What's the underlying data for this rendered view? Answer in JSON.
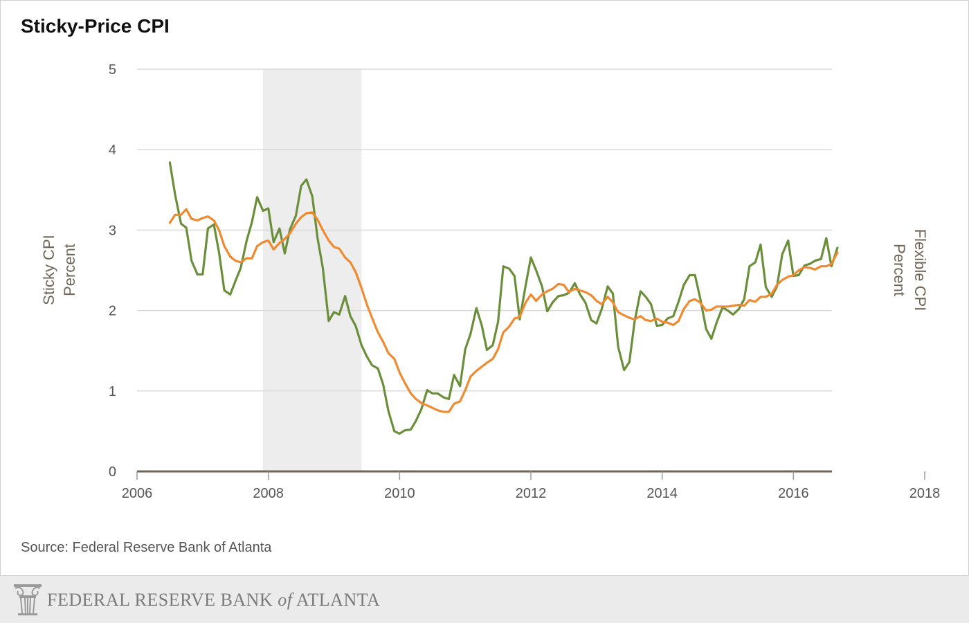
{
  "header": {
    "title": "Sticky-Price CPI"
  },
  "source": {
    "text": "Source: Federal Reserve Bank of Atlanta"
  },
  "footer": {
    "part1": "FEDERAL RESERVE BANK ",
    "of": "of",
    "part2": " ATLANTA",
    "logo_icon": "column-capital-logo-icon"
  },
  "colors": {
    "sticky": "#6b8e3a",
    "flexible": "#f08a30",
    "recession": "#ededed",
    "grid": "#d9d9d9",
    "baseline": "#6e6457",
    "axis_label": "#6e6457",
    "tick": "#555555"
  },
  "chart_data": {
    "type": "line",
    "title": "Sticky-Price CPI",
    "ylabel_left": [
      "Sticky CPI",
      "Percent"
    ],
    "ylabel_right": [
      "Flexible CPI",
      "Percent"
    ],
    "xlim": [
      2006,
      2018
    ],
    "ylim": [
      0,
      5
    ],
    "x_ticks": [
      2006,
      2008,
      2010,
      2012,
      2014,
      2016,
      2018
    ],
    "x_tick_labels": [
      "2006",
      "2008",
      "2010",
      "2012",
      "2014",
      "2016",
      "2018"
    ],
    "y_ticks": [
      0,
      1,
      2,
      3,
      4,
      5
    ],
    "y_tick_labels": [
      "0",
      "1",
      "2",
      "3",
      "4",
      "5"
    ],
    "grid": true,
    "shaded_regions": [
      [
        2007.92,
        2009.42
      ]
    ],
    "series": [
      {
        "color_key": "sticky",
        "points": [
          [
            2006.5,
            3.84
          ],
          [
            2006.58,
            3.44
          ],
          [
            2006.67,
            3.08
          ],
          [
            2006.75,
            3.03
          ],
          [
            2006.83,
            2.62
          ],
          [
            2006.92,
            2.45
          ],
          [
            2007.0,
            2.45
          ],
          [
            2007.08,
            3.02
          ],
          [
            2007.17,
            3.07
          ],
          [
            2007.25,
            2.72
          ],
          [
            2007.33,
            2.25
          ],
          [
            2007.42,
            2.2
          ],
          [
            2007.5,
            2.37
          ],
          [
            2007.58,
            2.53
          ],
          [
            2007.67,
            2.87
          ],
          [
            2007.75,
            3.1
          ],
          [
            2007.83,
            3.41
          ],
          [
            2007.92,
            3.24
          ],
          [
            2008.0,
            3.27
          ],
          [
            2008.08,
            2.85
          ],
          [
            2008.17,
            3.02
          ],
          [
            2008.25,
            2.71
          ],
          [
            2008.33,
            3.01
          ],
          [
            2008.42,
            3.18
          ],
          [
            2008.5,
            3.55
          ],
          [
            2008.58,
            3.63
          ],
          [
            2008.67,
            3.42
          ],
          [
            2008.75,
            2.9
          ],
          [
            2008.83,
            2.53
          ],
          [
            2008.92,
            1.87
          ],
          [
            2009.0,
            1.98
          ],
          [
            2009.08,
            1.95
          ],
          [
            2009.17,
            2.18
          ],
          [
            2009.25,
            1.93
          ],
          [
            2009.33,
            1.81
          ],
          [
            2009.42,
            1.57
          ],
          [
            2009.5,
            1.43
          ],
          [
            2009.58,
            1.32
          ],
          [
            2009.67,
            1.28
          ],
          [
            2009.75,
            1.08
          ],
          [
            2009.83,
            0.75
          ],
          [
            2009.92,
            0.5
          ],
          [
            2010.0,
            0.47
          ],
          [
            2010.08,
            0.51
          ],
          [
            2010.17,
            0.52
          ],
          [
            2010.25,
            0.63
          ],
          [
            2010.33,
            0.77
          ],
          [
            2010.42,
            1.01
          ],
          [
            2010.5,
            0.97
          ],
          [
            2010.58,
            0.97
          ],
          [
            2010.67,
            0.92
          ],
          [
            2010.75,
            0.9
          ],
          [
            2010.83,
            1.2
          ],
          [
            2010.92,
            1.06
          ],
          [
            2011.0,
            1.52
          ],
          [
            2011.08,
            1.71
          ],
          [
            2011.17,
            2.03
          ],
          [
            2011.25,
            1.82
          ],
          [
            2011.33,
            1.51
          ],
          [
            2011.42,
            1.57
          ],
          [
            2011.5,
            1.86
          ],
          [
            2011.58,
            2.55
          ],
          [
            2011.67,
            2.52
          ],
          [
            2011.75,
            2.43
          ],
          [
            2011.83,
            1.89
          ],
          [
            2011.92,
            2.31
          ],
          [
            2012.0,
            2.66
          ],
          [
            2012.08,
            2.5
          ],
          [
            2012.17,
            2.3
          ],
          [
            2012.25,
            1.99
          ],
          [
            2012.33,
            2.1
          ],
          [
            2012.42,
            2.18
          ],
          [
            2012.5,
            2.19
          ],
          [
            2012.58,
            2.22
          ],
          [
            2012.67,
            2.34
          ],
          [
            2012.75,
            2.2
          ],
          [
            2012.83,
            2.1
          ],
          [
            2012.92,
            1.88
          ],
          [
            2013.0,
            1.84
          ],
          [
            2013.08,
            2.02
          ],
          [
            2013.17,
            2.3
          ],
          [
            2013.25,
            2.21
          ],
          [
            2013.33,
            1.55
          ],
          [
            2013.42,
            1.26
          ],
          [
            2013.5,
            1.36
          ],
          [
            2013.58,
            1.86
          ],
          [
            2013.67,
            2.24
          ],
          [
            2013.75,
            2.17
          ],
          [
            2013.83,
            2.08
          ],
          [
            2013.92,
            1.81
          ],
          [
            2014.0,
            1.82
          ],
          [
            2014.08,
            1.9
          ],
          [
            2014.17,
            1.93
          ],
          [
            2014.25,
            2.11
          ],
          [
            2014.33,
            2.32
          ],
          [
            2014.42,
            2.44
          ],
          [
            2014.5,
            2.44
          ],
          [
            2014.58,
            2.15
          ],
          [
            2014.67,
            1.77
          ],
          [
            2014.75,
            1.65
          ],
          [
            2014.83,
            1.85
          ],
          [
            2014.92,
            2.04
          ],
          [
            2015.0,
            2.0
          ],
          [
            2015.08,
            1.95
          ],
          [
            2015.17,
            2.02
          ],
          [
            2015.25,
            2.14
          ],
          [
            2015.33,
            2.55
          ],
          [
            2015.42,
            2.6
          ],
          [
            2015.5,
            2.82
          ],
          [
            2015.58,
            2.29
          ],
          [
            2015.67,
            2.17
          ],
          [
            2015.75,
            2.3
          ],
          [
            2015.83,
            2.7
          ],
          [
            2015.92,
            2.87
          ],
          [
            2016.0,
            2.43
          ],
          [
            2016.08,
            2.44
          ],
          [
            2016.17,
            2.56
          ],
          [
            2016.25,
            2.58
          ],
          [
            2016.33,
            2.62
          ],
          [
            2016.42,
            2.64
          ],
          [
            2016.5,
            2.9
          ],
          [
            2016.58,
            2.55
          ],
          [
            2016.67,
            2.78
          ]
        ]
      },
      {
        "color_key": "flexible",
        "points": [
          [
            2006.5,
            3.09
          ],
          [
            2006.58,
            3.19
          ],
          [
            2006.67,
            3.19
          ],
          [
            2006.75,
            3.26
          ],
          [
            2006.83,
            3.14
          ],
          [
            2006.92,
            3.12
          ],
          [
            2007.0,
            3.15
          ],
          [
            2007.08,
            3.17
          ],
          [
            2007.17,
            3.12
          ],
          [
            2007.25,
            3.0
          ],
          [
            2007.33,
            2.8
          ],
          [
            2007.42,
            2.67
          ],
          [
            2007.5,
            2.62
          ],
          [
            2007.58,
            2.6
          ],
          [
            2007.67,
            2.65
          ],
          [
            2007.75,
            2.65
          ],
          [
            2007.83,
            2.8
          ],
          [
            2007.92,
            2.85
          ],
          [
            2008.0,
            2.87
          ],
          [
            2008.08,
            2.76
          ],
          [
            2008.17,
            2.84
          ],
          [
            2008.25,
            2.89
          ],
          [
            2008.33,
            2.96
          ],
          [
            2008.42,
            3.08
          ],
          [
            2008.5,
            3.16
          ],
          [
            2008.58,
            3.21
          ],
          [
            2008.67,
            3.22
          ],
          [
            2008.75,
            3.13
          ],
          [
            2008.83,
            3.0
          ],
          [
            2008.92,
            2.87
          ],
          [
            2009.0,
            2.79
          ],
          [
            2009.08,
            2.77
          ],
          [
            2009.17,
            2.66
          ],
          [
            2009.25,
            2.6
          ],
          [
            2009.33,
            2.48
          ],
          [
            2009.42,
            2.28
          ],
          [
            2009.5,
            2.08
          ],
          [
            2009.58,
            1.91
          ],
          [
            2009.67,
            1.73
          ],
          [
            2009.75,
            1.61
          ],
          [
            2009.83,
            1.47
          ],
          [
            2009.92,
            1.4
          ],
          [
            2010.0,
            1.23
          ],
          [
            2010.08,
            1.1
          ],
          [
            2010.17,
            0.97
          ],
          [
            2010.25,
            0.9
          ],
          [
            2010.33,
            0.85
          ],
          [
            2010.42,
            0.82
          ],
          [
            2010.5,
            0.79
          ],
          [
            2010.58,
            0.76
          ],
          [
            2010.67,
            0.74
          ],
          [
            2010.75,
            0.74
          ],
          [
            2010.83,
            0.84
          ],
          [
            2010.92,
            0.87
          ],
          [
            2011.0,
            1.01
          ],
          [
            2011.08,
            1.18
          ],
          [
            2011.17,
            1.25
          ],
          [
            2011.25,
            1.3
          ],
          [
            2011.33,
            1.35
          ],
          [
            2011.42,
            1.4
          ],
          [
            2011.5,
            1.52
          ],
          [
            2011.58,
            1.73
          ],
          [
            2011.67,
            1.8
          ],
          [
            2011.75,
            1.9
          ],
          [
            2011.83,
            1.92
          ],
          [
            2011.92,
            2.1
          ],
          [
            2012.0,
            2.2
          ],
          [
            2012.08,
            2.12
          ],
          [
            2012.17,
            2.2
          ],
          [
            2012.25,
            2.24
          ],
          [
            2012.33,
            2.27
          ],
          [
            2012.42,
            2.33
          ],
          [
            2012.5,
            2.32
          ],
          [
            2012.58,
            2.23
          ],
          [
            2012.67,
            2.27
          ],
          [
            2012.75,
            2.25
          ],
          [
            2012.83,
            2.23
          ],
          [
            2012.92,
            2.19
          ],
          [
            2013.0,
            2.12
          ],
          [
            2013.08,
            2.08
          ],
          [
            2013.17,
            2.17
          ],
          [
            2013.25,
            2.1
          ],
          [
            2013.33,
            1.98
          ],
          [
            2013.42,
            1.94
          ],
          [
            2013.5,
            1.91
          ],
          [
            2013.58,
            1.89
          ],
          [
            2013.67,
            1.93
          ],
          [
            2013.75,
            1.88
          ],
          [
            2013.83,
            1.87
          ],
          [
            2013.92,
            1.9
          ],
          [
            2014.0,
            1.86
          ],
          [
            2014.08,
            1.85
          ],
          [
            2014.17,
            1.82
          ],
          [
            2014.25,
            1.87
          ],
          [
            2014.33,
            2.02
          ],
          [
            2014.42,
            2.12
          ],
          [
            2014.5,
            2.14
          ],
          [
            2014.58,
            2.1
          ],
          [
            2014.67,
            2.0
          ],
          [
            2014.75,
            2.01
          ],
          [
            2014.83,
            2.05
          ],
          [
            2014.92,
            2.05
          ],
          [
            2015.0,
            2.05
          ],
          [
            2015.08,
            2.06
          ],
          [
            2015.17,
            2.07
          ],
          [
            2015.25,
            2.06
          ],
          [
            2015.33,
            2.13
          ],
          [
            2015.42,
            2.11
          ],
          [
            2015.5,
            2.17
          ],
          [
            2015.58,
            2.17
          ],
          [
            2015.67,
            2.21
          ],
          [
            2015.75,
            2.32
          ],
          [
            2015.83,
            2.38
          ],
          [
            2015.92,
            2.42
          ],
          [
            2016.0,
            2.44
          ],
          [
            2016.08,
            2.5
          ],
          [
            2016.17,
            2.54
          ],
          [
            2016.25,
            2.53
          ],
          [
            2016.33,
            2.51
          ],
          [
            2016.42,
            2.55
          ],
          [
            2016.5,
            2.55
          ],
          [
            2016.58,
            2.58
          ],
          [
            2016.67,
            2.72
          ]
        ]
      }
    ]
  }
}
